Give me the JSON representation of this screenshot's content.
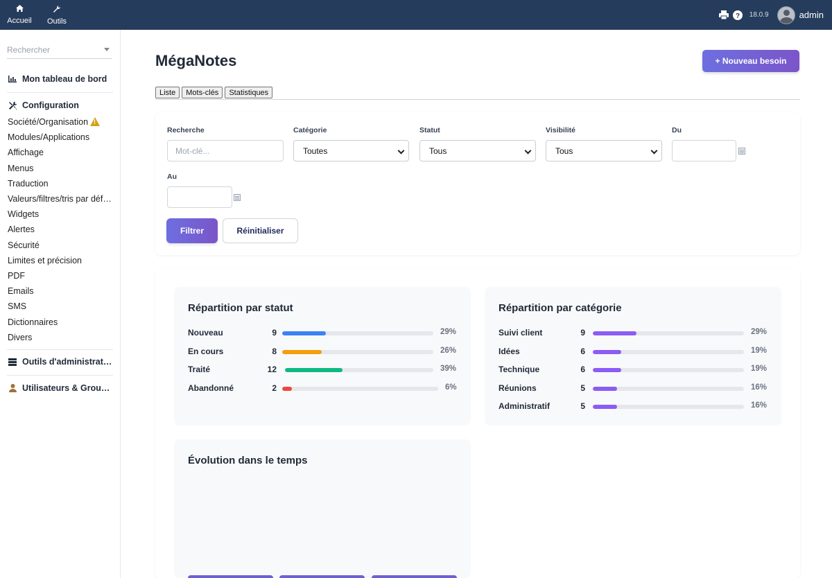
{
  "topbar": {
    "nav": [
      {
        "label": "Accueil",
        "icon": "home-icon"
      },
      {
        "label": "Outils",
        "icon": "wrench-icon"
      }
    ],
    "version": "18.0.9",
    "user": "admin"
  },
  "sidebar": {
    "search_placeholder": "Rechercher",
    "dashboard": "Mon tableau de bord",
    "config_heading": "Configuration",
    "items": [
      "Société/Organisation",
      "Modules/Applications",
      "Affichage",
      "Menus",
      "Traduction",
      "Valeurs/filtres/tris par défaut",
      "Widgets",
      "Alertes",
      "Sécurité",
      "Limites et précision",
      "PDF",
      "Emails",
      "SMS",
      "Dictionnaires",
      "Divers"
    ],
    "admin_tools": "Outils d'administration",
    "users_groups": "Utilisateurs & Groupes"
  },
  "page": {
    "title": "MégaNotes",
    "new_button": "+ Nouveau besoin",
    "tabs": [
      "Liste",
      "Mots-clés",
      "Statistiques"
    ]
  },
  "filters": {
    "search_label": "Recherche",
    "search_placeholder": "Mot-clé...",
    "category_label": "Catégorie",
    "category_value": "Toutes",
    "status_label": "Statut",
    "status_value": "Tous",
    "visibility_label": "Visibilité",
    "visibility_value": "Tous",
    "from_label": "Du",
    "to_label": "Au",
    "filter_button": "Filtrer",
    "reset_button": "Réinitialiser"
  },
  "colors": {
    "accent": "#6d6fe0",
    "topbar": "#263c5c",
    "status_new": "#3b82f6",
    "status_inprogress": "#f59e0b",
    "status_done": "#10b981",
    "status_abandoned": "#ef4444",
    "category": "#8b5cf6"
  },
  "stats": {
    "by_status": {
      "title": "Répartition par statut",
      "rows": [
        {
          "label": "Nouveau",
          "count": "9",
          "pct": "29%",
          "fraction": 0.29,
          "color": "#3b82f6"
        },
        {
          "label": "En cours",
          "count": "8",
          "pct": "26%",
          "fraction": 0.26,
          "color": "#f59e0b"
        },
        {
          "label": "Traité",
          "count": "12",
          "pct": "39%",
          "fraction": 0.39,
          "color": "#10b981"
        },
        {
          "label": "Abandonné",
          "count": "2",
          "pct": "6%",
          "fraction": 0.06,
          "color": "#ef4444"
        }
      ]
    },
    "by_category": {
      "title": "Répartition par catégorie",
      "rows": [
        {
          "label": "Suivi client",
          "count": "9",
          "pct": "29%",
          "fraction": 0.29,
          "color": "#8b5cf6"
        },
        {
          "label": "Idées",
          "count": "6",
          "pct": "19%",
          "fraction": 0.19,
          "color": "#8b5cf6"
        },
        {
          "label": "Technique",
          "count": "6",
          "pct": "19%",
          "fraction": 0.19,
          "color": "#8b5cf6"
        },
        {
          "label": "Réunions",
          "count": "5",
          "pct": "16%",
          "fraction": 0.16,
          "color": "#8b5cf6"
        },
        {
          "label": "Administratif",
          "count": "5",
          "pct": "16%",
          "fraction": 0.16,
          "color": "#8b5cf6"
        }
      ]
    },
    "evolution": {
      "title": "Évolution dans le temps"
    }
  }
}
